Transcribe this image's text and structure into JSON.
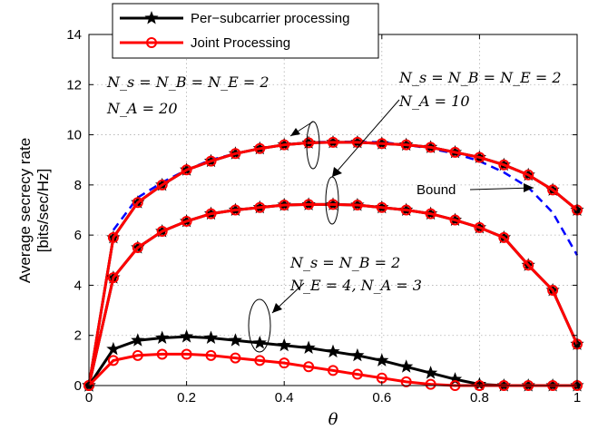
{
  "chart_data": {
    "type": "line",
    "xlabel": "θ",
    "ylabel": [
      "Average secrecy rate",
      "[bits/sec/Hz]"
    ],
    "xlim": [
      0,
      1
    ],
    "ylim": [
      0,
      14
    ],
    "xticks": [
      0,
      0.2,
      0.4,
      0.6,
      0.8,
      1
    ],
    "yticks": [
      0,
      2,
      4,
      6,
      8,
      10,
      12,
      14
    ],
    "xtick_labels": [
      "0",
      "0.2",
      "0.4",
      "0.6",
      "0.8",
      "1"
    ],
    "ytick_labels": [
      "0",
      "2",
      "4",
      "6",
      "8",
      "10",
      "12",
      "14"
    ],
    "grid": true,
    "legend_position": "top-left",
    "legend": [
      {
        "label": "Per−subcarrier processing",
        "color": "#000000",
        "marker": "star"
      },
      {
        "label": "Joint Processing",
        "color": "#ff0000",
        "marker": "circle"
      }
    ],
    "x": [
      0,
      0.05,
      0.1,
      0.15,
      0.2,
      0.25,
      0.3,
      0.35,
      0.4,
      0.45,
      0.5,
      0.55,
      0.6,
      0.65,
      0.7,
      0.75,
      0.8,
      0.85,
      0.9,
      0.95,
      1
    ],
    "groups": [
      {
        "per_subcarrier": [
          0,
          5.9,
          7.3,
          8.0,
          8.6,
          8.95,
          9.25,
          9.45,
          9.6,
          9.68,
          9.7,
          9.7,
          9.65,
          9.6,
          9.5,
          9.3,
          9.1,
          8.8,
          8.4,
          7.8,
          7.0
        ],
        "joint": [
          0,
          5.9,
          7.3,
          8.0,
          8.6,
          8.95,
          9.25,
          9.45,
          9.6,
          9.68,
          9.7,
          9.7,
          9.65,
          9.6,
          9.5,
          9.3,
          9.1,
          8.8,
          8.4,
          7.8,
          7.0
        ]
      },
      {
        "per_subcarrier": [
          0,
          4.3,
          5.5,
          6.15,
          6.55,
          6.85,
          7.0,
          7.1,
          7.2,
          7.22,
          7.22,
          7.2,
          7.1,
          7.0,
          6.85,
          6.6,
          6.3,
          5.9,
          4.8,
          3.8,
          1.65
        ],
        "joint": [
          0,
          4.3,
          5.5,
          6.15,
          6.55,
          6.85,
          7.0,
          7.1,
          7.2,
          7.22,
          7.22,
          7.2,
          7.1,
          7.0,
          6.85,
          6.6,
          6.3,
          5.9,
          4.8,
          3.8,
          1.65
        ]
      },
      {
        "per_subcarrier": [
          0,
          1.45,
          1.8,
          1.9,
          1.95,
          1.9,
          1.8,
          1.7,
          1.6,
          1.5,
          1.35,
          1.2,
          1.0,
          0.75,
          0.5,
          0.25,
          0.05,
          0,
          0,
          0,
          0
        ],
        "joint": [
          0,
          1.0,
          1.2,
          1.25,
          1.25,
          1.2,
          1.1,
          1.0,
          0.9,
          0.75,
          0.6,
          0.45,
          0.3,
          0.15,
          0.05,
          0,
          0,
          0,
          0,
          0,
          0
        ]
      }
    ],
    "bound": {
      "color": "#0000ff",
      "x": [
        0.05,
        0.1,
        0.15,
        0.2,
        0.25,
        0.3,
        0.35,
        0.4,
        0.45,
        0.5,
        0.55,
        0.6,
        0.65,
        0.7,
        0.75,
        0.8,
        0.85,
        0.9,
        0.95,
        1
      ],
      "y": [
        6.2,
        7.5,
        8.1,
        8.6,
        9.0,
        9.25,
        9.45,
        9.6,
        9.7,
        9.72,
        9.72,
        9.7,
        9.6,
        9.45,
        9.25,
        8.95,
        8.5,
        7.9,
        6.9,
        5.2
      ]
    },
    "annotations": {
      "group1_line1": "N_s = N_B = N_E = 2",
      "group1_line2": "N_A = 20",
      "group2_line1": "N_s = N_B = N_E = 2",
      "group2_line2": "N_A = 10",
      "group3_line1": "N_s = N_B = 2",
      "group3_line2": "N_E = 4, N_A = 3",
      "bound_label": "Bound"
    }
  }
}
